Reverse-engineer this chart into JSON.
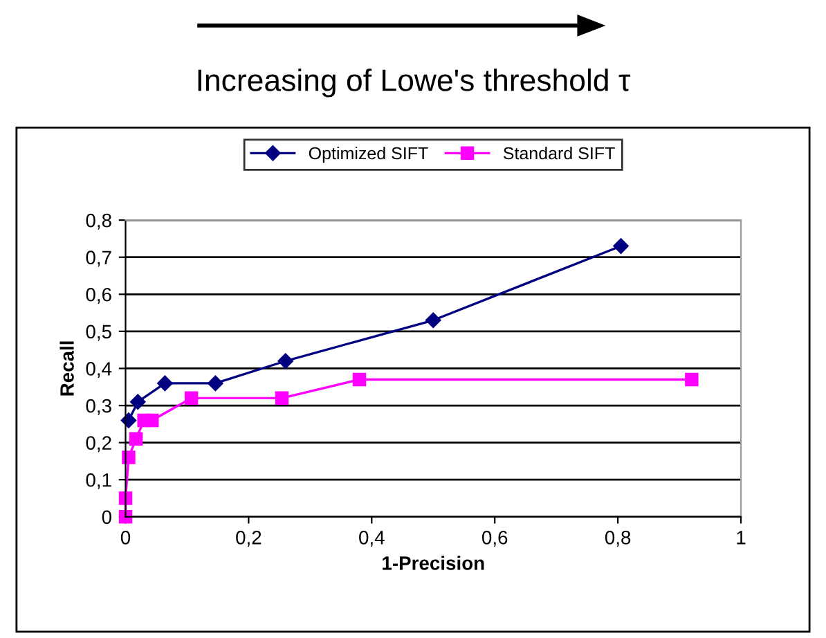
{
  "chart_data": {
    "type": "line",
    "title": "Increasing of Lowe's threshold τ",
    "xlabel": "1-Precision",
    "ylabel": "Recall",
    "series": [
      {
        "name": "Optimized SIFT",
        "color": "#000080",
        "marker": "diamond",
        "x": [
          0.005,
          0.02,
          0.064,
          0.146,
          0.26,
          0.5,
          0.805
        ],
        "values": [
          0.26,
          0.31,
          0.36,
          0.36,
          0.42,
          0.53,
          0.73
        ]
      },
      {
        "name": "Standard SIFT",
        "color": "#ff00ff",
        "marker": "square",
        "x": [
          0,
          0,
          0.005,
          0.017,
          0.03,
          0.043,
          0.107,
          0.254,
          0.38,
          0.92
        ],
        "values": [
          0,
          0.05,
          0.16,
          0.21,
          0.26,
          0.26,
          0.32,
          0.32,
          0.37,
          0.37
        ]
      }
    ],
    "xlim": [
      0,
      1
    ],
    "ylim": [
      0,
      0.8
    ],
    "xticks": [
      0,
      {
        "value": 0.2,
        "label": "0,2"
      },
      {
        "value": 0.4,
        "label": "0,4"
      },
      {
        "value": 0.6,
        "label": "0,6"
      },
      {
        "value": 0.8,
        "label": "0,8"
      },
      1
    ],
    "yticks": [
      0,
      {
        "value": 0.1,
        "label": "0,1"
      },
      {
        "value": 0.2,
        "label": "0,2"
      },
      {
        "value": 0.3,
        "label": "0,3"
      },
      {
        "value": 0.4,
        "label": "0,4"
      },
      {
        "value": 0.5,
        "label": "0,5"
      },
      {
        "value": 0.6,
        "label": "0,6"
      },
      {
        "value": 0.7,
        "label": "0,7"
      },
      {
        "value": 0.8,
        "label": "0,8"
      }
    ],
    "grid": "y",
    "legend": "top",
    "line_style": "solid"
  }
}
